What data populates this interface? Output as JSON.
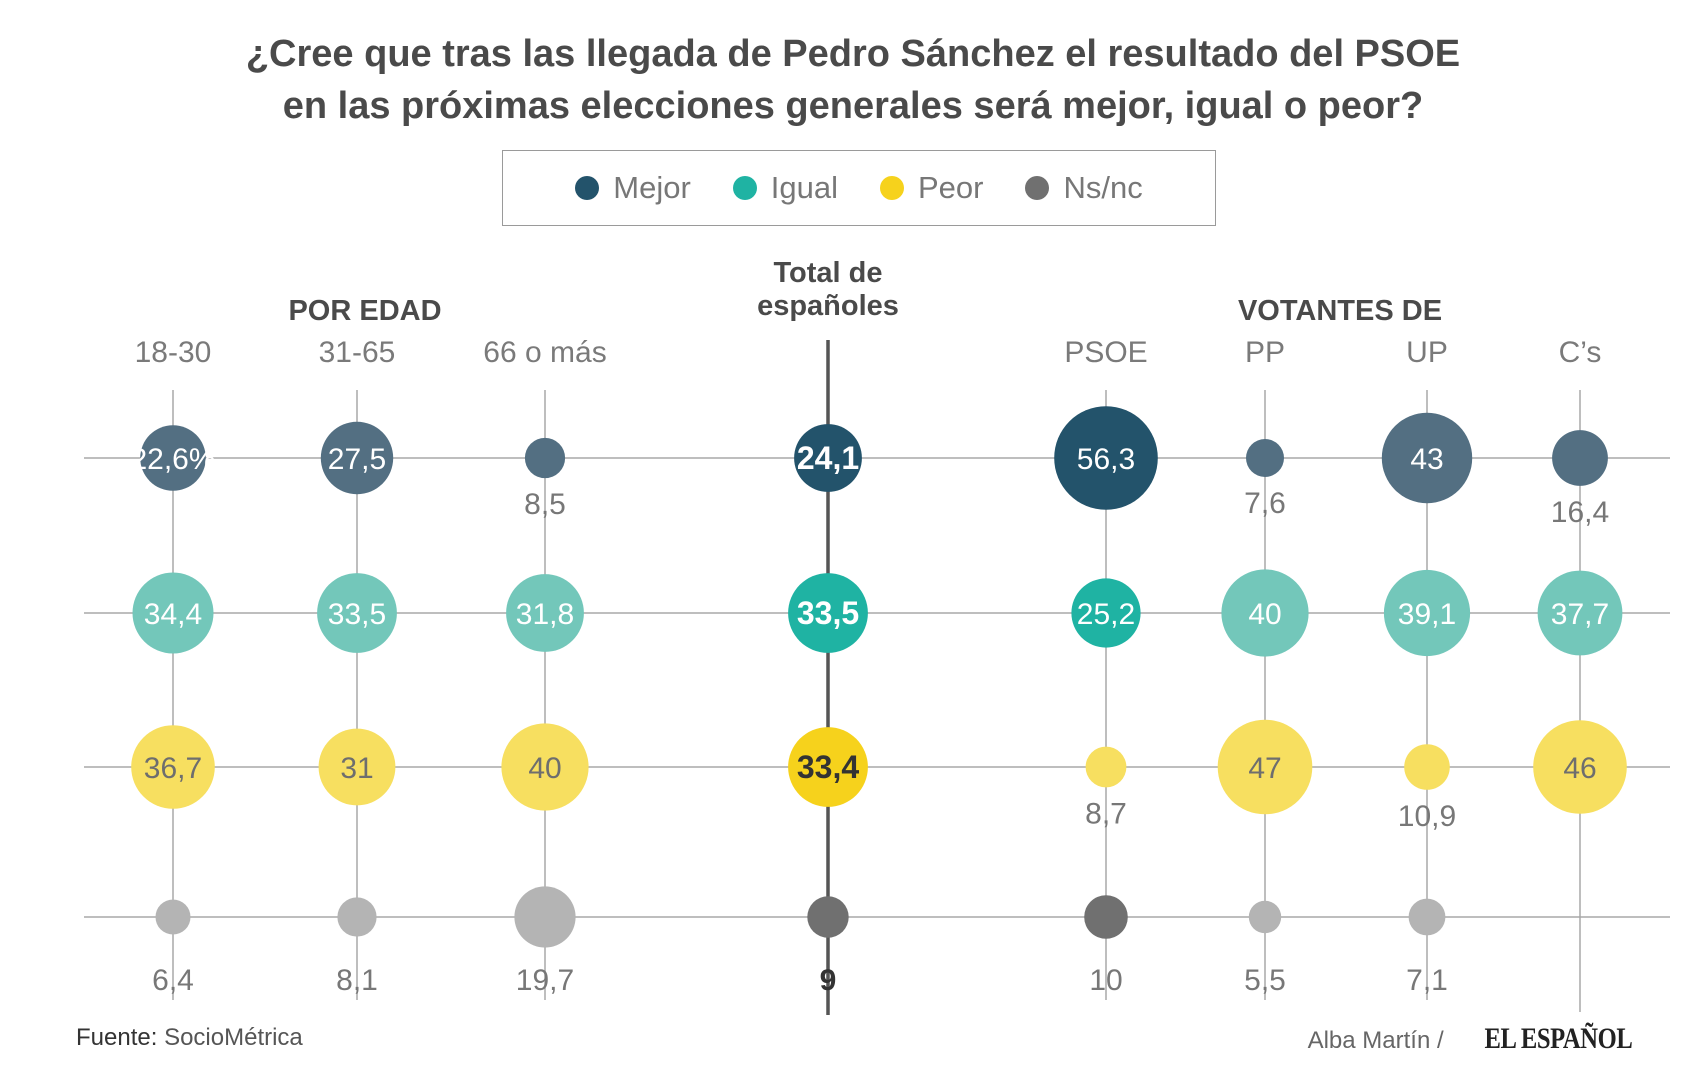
{
  "title_lines": [
    "¿Cree que tras las llegada de Pedro Sánchez el resultado del PSOE",
    "en las próximas elecciones generales será mejor, igual o peor?"
  ],
  "legend": [
    {
      "label": "Mejor",
      "color": "#23536b"
    },
    {
      "label": "Igual",
      "color": "#1fb3a3"
    },
    {
      "label": "Peor",
      "color": "#f6d21c"
    },
    {
      "label": "Ns/nc",
      "color": "#707070"
    }
  ],
  "group_headings": {
    "by_age": "POR EDAD",
    "total": [
      "Total de",
      "españoles"
    ],
    "voters": "VOTANTES DE"
  },
  "chart_data": {
    "type": "bubble-matrix",
    "title": "¿Cree que tras las llegada de Pedro Sánchez el resultado del PSOE en las próximas elecciones generales será mejor, igual o peor?",
    "unit": "%",
    "rows": [
      "Mejor",
      "Igual",
      "Peor",
      "Ns/nc"
    ],
    "columns": [
      "18-30",
      "31-65",
      "66 o más",
      "Total de españoles",
      "PSOE",
      "PP",
      "UP",
      "C’s"
    ],
    "series": [
      {
        "name": "18-30",
        "group": "POR EDAD",
        "values": [
          22.6,
          34.4,
          36.7,
          6.4
        ],
        "labels": [
          "22,6%",
          "34,4",
          "36,7",
          "6,4"
        ]
      },
      {
        "name": "31-65",
        "group": "POR EDAD",
        "values": [
          27.5,
          33.5,
          31,
          8.1
        ],
        "labels": [
          "27,5",
          "33,5",
          "31",
          "8,1"
        ]
      },
      {
        "name": "66 o más",
        "group": "POR EDAD",
        "values": [
          8.5,
          31.8,
          40,
          19.7
        ],
        "labels": [
          "8,5",
          "31,8",
          "40",
          "19,7"
        ]
      },
      {
        "name": "Total de españoles",
        "group": "Total",
        "values": [
          24.1,
          33.5,
          33.4,
          9
        ],
        "labels": [
          "24,1",
          "33,5",
          "33,4",
          "9"
        ]
      },
      {
        "name": "PSOE",
        "group": "VOTANTES DE",
        "values": [
          56.3,
          25.2,
          8.7,
          10
        ],
        "labels": [
          "56,3",
          "25,2",
          "8,7",
          "10"
        ]
      },
      {
        "name": "PP",
        "group": "VOTANTES DE",
        "values": [
          7.6,
          40,
          47,
          5.5
        ],
        "labels": [
          "7,6",
          "40",
          "47",
          "5,5"
        ]
      },
      {
        "name": "UP",
        "group": "VOTANTES DE",
        "values": [
          43,
          39.1,
          10.9,
          7.1
        ],
        "labels": [
          "43",
          "39,1",
          "10,9",
          "7,1"
        ]
      },
      {
        "name": "C’s",
        "group": "VOTANTES DE",
        "values": [
          16.4,
          37.7,
          46,
          null
        ],
        "labels": [
          "16,4",
          "37,7",
          "46",
          ""
        ]
      }
    ]
  },
  "colors": {
    "mejor": "#23536b",
    "mejor_light": "#536f82",
    "igual": "#1fb3a3",
    "igual_light": "#73c7ba",
    "peor": "#f6d21c",
    "peor_light": "#f7df60",
    "nsnc": "#707070",
    "nsnc_light": "#b4b4b4",
    "grid": "#a8a8a8",
    "axis": "#555555"
  },
  "source": {
    "label": "Fuente:",
    "value": "SocioMétrica"
  },
  "credit": {
    "author": "Alba Martín /",
    "publisher": "EL ESPAÑOL"
  }
}
